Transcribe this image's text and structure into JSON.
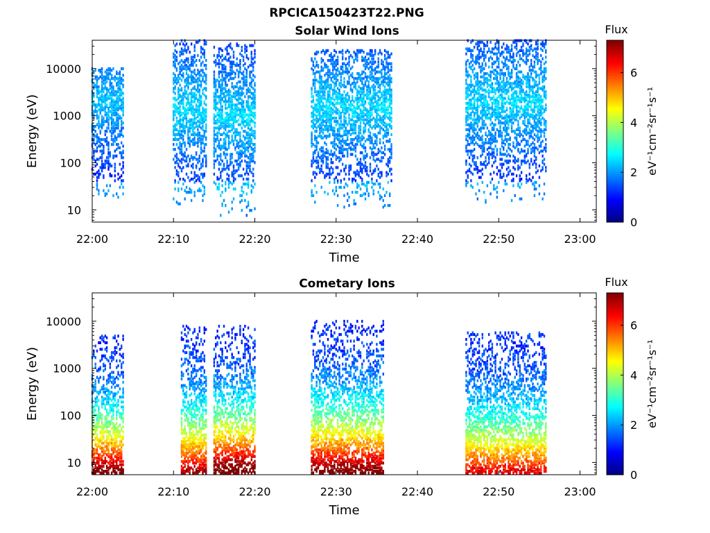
{
  "figure_title": "RPCICA150423T22.PNG",
  "colorbar": {
    "title": "Flux",
    "unit_label": "eV⁻¹cm⁻²sr⁻¹s⁻¹",
    "ticks": [
      "0",
      "2",
      "4",
      "6"
    ],
    "range": [
      0,
      7.3
    ],
    "colormap": "jet"
  },
  "chart_data": [
    {
      "type": "heatmap",
      "title": "Solar Wind Ions",
      "xlabel": "Time",
      "ylabel": "Energy (eV)",
      "yscale": "log",
      "ylim": [
        5.5,
        40000
      ],
      "xlim": [
        "22:00",
        "23:02"
      ],
      "x_ticks": [
        "22:00",
        "22:10",
        "22:20",
        "22:30",
        "22:40",
        "22:50",
        "23:00"
      ],
      "y_ticks": [
        "10",
        "100",
        "1000",
        "10000"
      ],
      "activity_bursts": [
        {
          "start": "22:00",
          "end": "22:04",
          "energy_range": [
            6,
            10000
          ],
          "peak_energy": 2000,
          "peak_flux": 2.3
        },
        {
          "start": "22:10",
          "end": "22:14",
          "energy_range": [
            6,
            40000
          ],
          "peak_energy": 1500,
          "peak_flux": 2.5
        },
        {
          "start": "22:15",
          "end": "22:20",
          "energy_range": [
            6,
            35000
          ],
          "peak_energy": 1000,
          "peak_flux": 2.5
        },
        {
          "start": "22:27",
          "end": "22:37",
          "energy_range": [
            6,
            25000
          ],
          "peak_energy": 1500,
          "peak_flux": 2.5
        },
        {
          "start": "22:46",
          "end": "22:56",
          "energy_range": [
            6,
            40000
          ],
          "peak_energy": 2000,
          "peak_flux": 2.5
        }
      ]
    },
    {
      "type": "heatmap",
      "title": "Cometary Ions",
      "xlabel": "Time",
      "ylabel": "Energy (eV)",
      "yscale": "log",
      "ylim": [
        5.5,
        40000
      ],
      "xlim": [
        "22:00",
        "23:02"
      ],
      "x_ticks": [
        "22:00",
        "22:10",
        "22:20",
        "22:30",
        "22:40",
        "22:50",
        "23:00"
      ],
      "y_ticks": [
        "10",
        "100",
        "1000",
        "10000"
      ],
      "activity_bursts": [
        {
          "start": "22:00",
          "end": "22:04",
          "energy_range": [
            6,
            5000
          ],
          "peak_energy": 8,
          "peak_flux": 6.5
        },
        {
          "start": "22:11",
          "end": "22:14",
          "energy_range": [
            6,
            8000
          ],
          "peak_energy": 8,
          "peak_flux": 6.0
        },
        {
          "start": "22:15",
          "end": "22:20",
          "energy_range": [
            6,
            8000
          ],
          "peak_energy": 8,
          "peak_flux": 6.8
        },
        {
          "start": "22:27",
          "end": "22:36",
          "energy_range": [
            6,
            10000
          ],
          "peak_energy": 10,
          "peak_flux": 6.5
        },
        {
          "start": "22:46",
          "end": "22:56",
          "energy_range": [
            6,
            6000
          ],
          "peak_energy": 8,
          "peak_flux": 5.5
        }
      ]
    }
  ]
}
